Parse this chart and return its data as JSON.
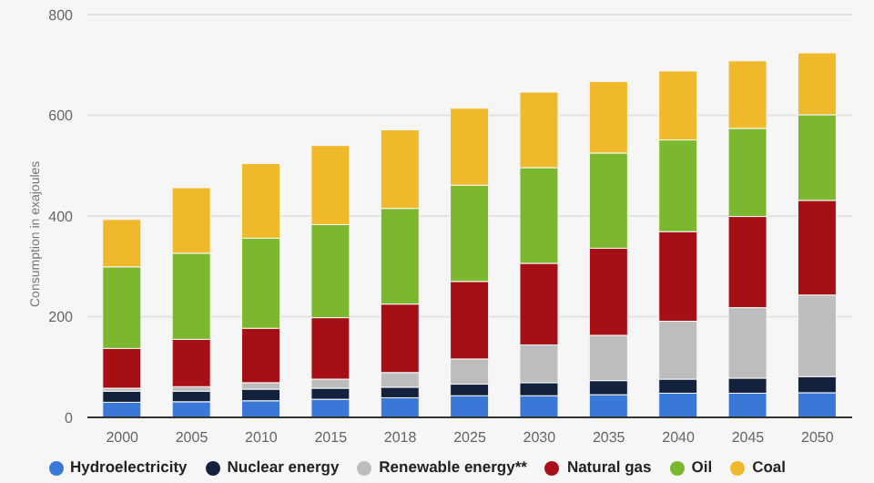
{
  "chart_data": {
    "type": "bar",
    "stacked": true,
    "ylabel": "Consumption in exajoules",
    "categories": [
      "2000",
      "2005",
      "2010",
      "2015",
      "2018",
      "2025",
      "2030",
      "2035",
      "2040",
      "2045",
      "2050"
    ],
    "series": [
      {
        "name": "Hydroelectricity",
        "color": "#3a78d8",
        "values": [
          30,
          31,
          33,
          36,
          39,
          43,
          43,
          45,
          48,
          48,
          49
        ]
      },
      {
        "name": "Nuclear energy",
        "color": "#14213d",
        "values": [
          22,
          21,
          23,
          22,
          21,
          23,
          26,
          28,
          28,
          30,
          32
        ]
      },
      {
        "name": "Renewable energy**",
        "color": "#bdbdbd",
        "values": [
          6,
          9,
          13,
          18,
          29,
          50,
          75,
          90,
          115,
          140,
          162
        ]
      },
      {
        "name": "Natural gas",
        "color": "#a50f15",
        "values": [
          79,
          94,
          108,
          122,
          136,
          154,
          162,
          173,
          178,
          181,
          188
        ]
      },
      {
        "name": "Oil",
        "color": "#7cb82f",
        "values": [
          162,
          171,
          179,
          185,
          190,
          191,
          190,
          189,
          182,
          175,
          170
        ]
      },
      {
        "name": "Coal",
        "color": "#f0b92c",
        "values": [
          94,
          130,
          148,
          157,
          156,
          153,
          150,
          142,
          137,
          134,
          123
        ]
      }
    ],
    "ylim": [
      0,
      800
    ],
    "yticks": [
      0,
      200,
      400,
      600,
      800
    ],
    "grid": "y",
    "legend": "bottom"
  }
}
